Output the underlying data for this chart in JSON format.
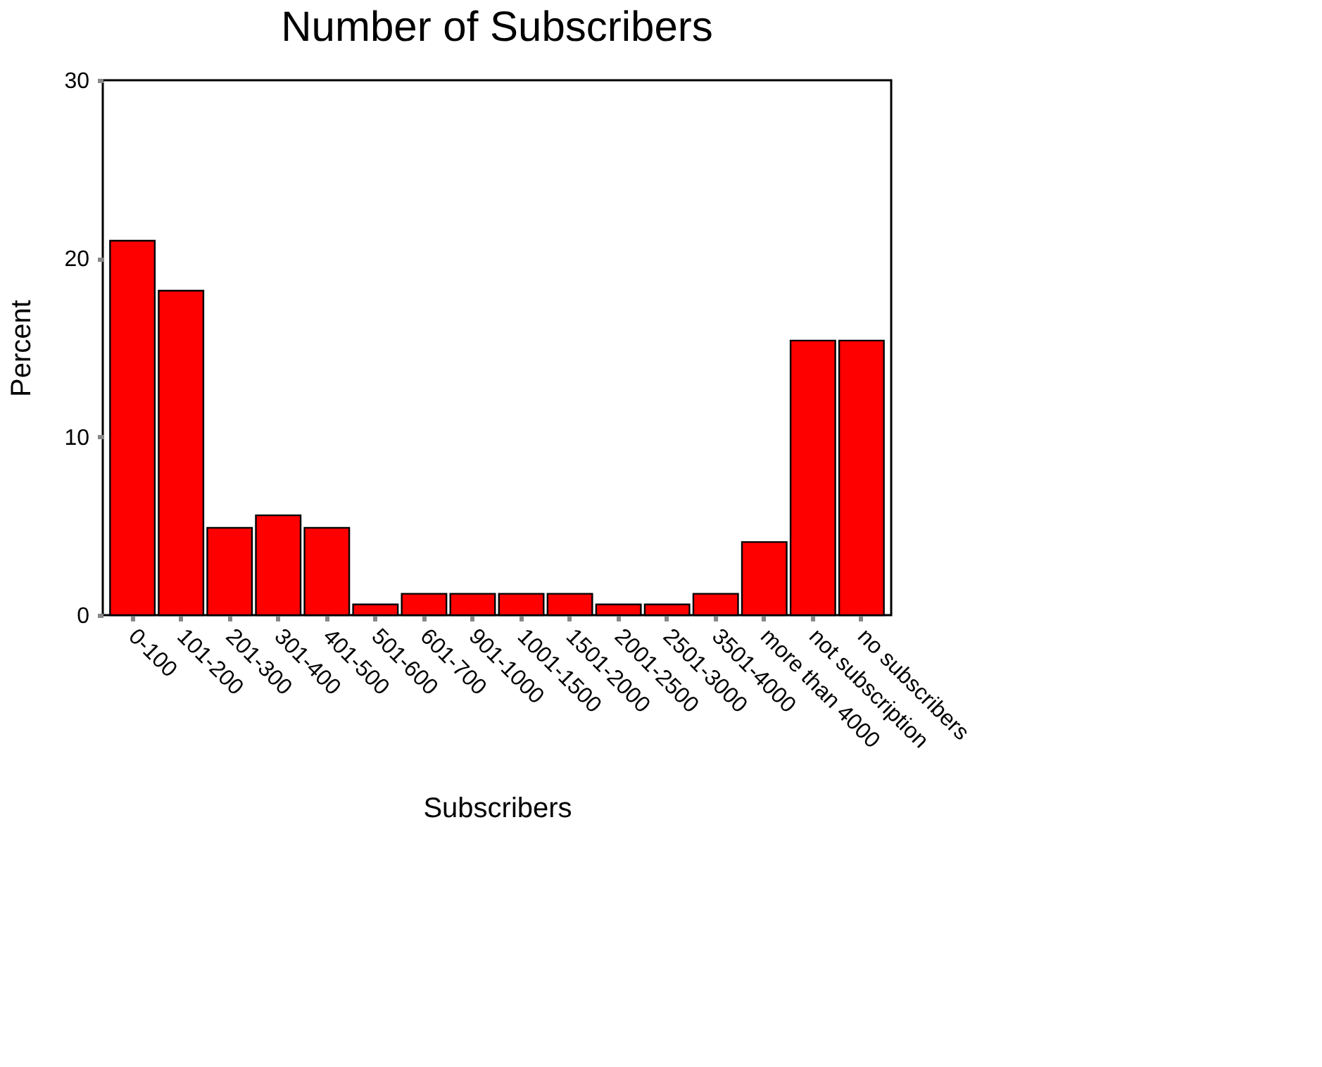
{
  "chart_data": {
    "type": "bar",
    "title": "Number of Subscribers",
    "xlabel": "Subscribers",
    "ylabel": "Percent",
    "categories": [
      "0-100",
      "101-200",
      "201-300",
      "301-400",
      "401-500",
      "501-600",
      "601-700",
      "901-1000",
      "1001-1500",
      "1501-2000",
      "2001-2500",
      "2501-3000",
      "3501-4000",
      "more than 4000",
      "not subscription",
      "no subscribers"
    ],
    "values": [
      21.0,
      18.2,
      4.9,
      5.6,
      4.9,
      0.6,
      1.2,
      1.2,
      1.2,
      1.2,
      0.6,
      0.6,
      1.2,
      4.1,
      15.4,
      15.4
    ],
    "color": "#ff0000",
    "ylim": [
      0,
      30
    ],
    "yticks": [
      0,
      10,
      20,
      30
    ],
    "grid": false
  }
}
